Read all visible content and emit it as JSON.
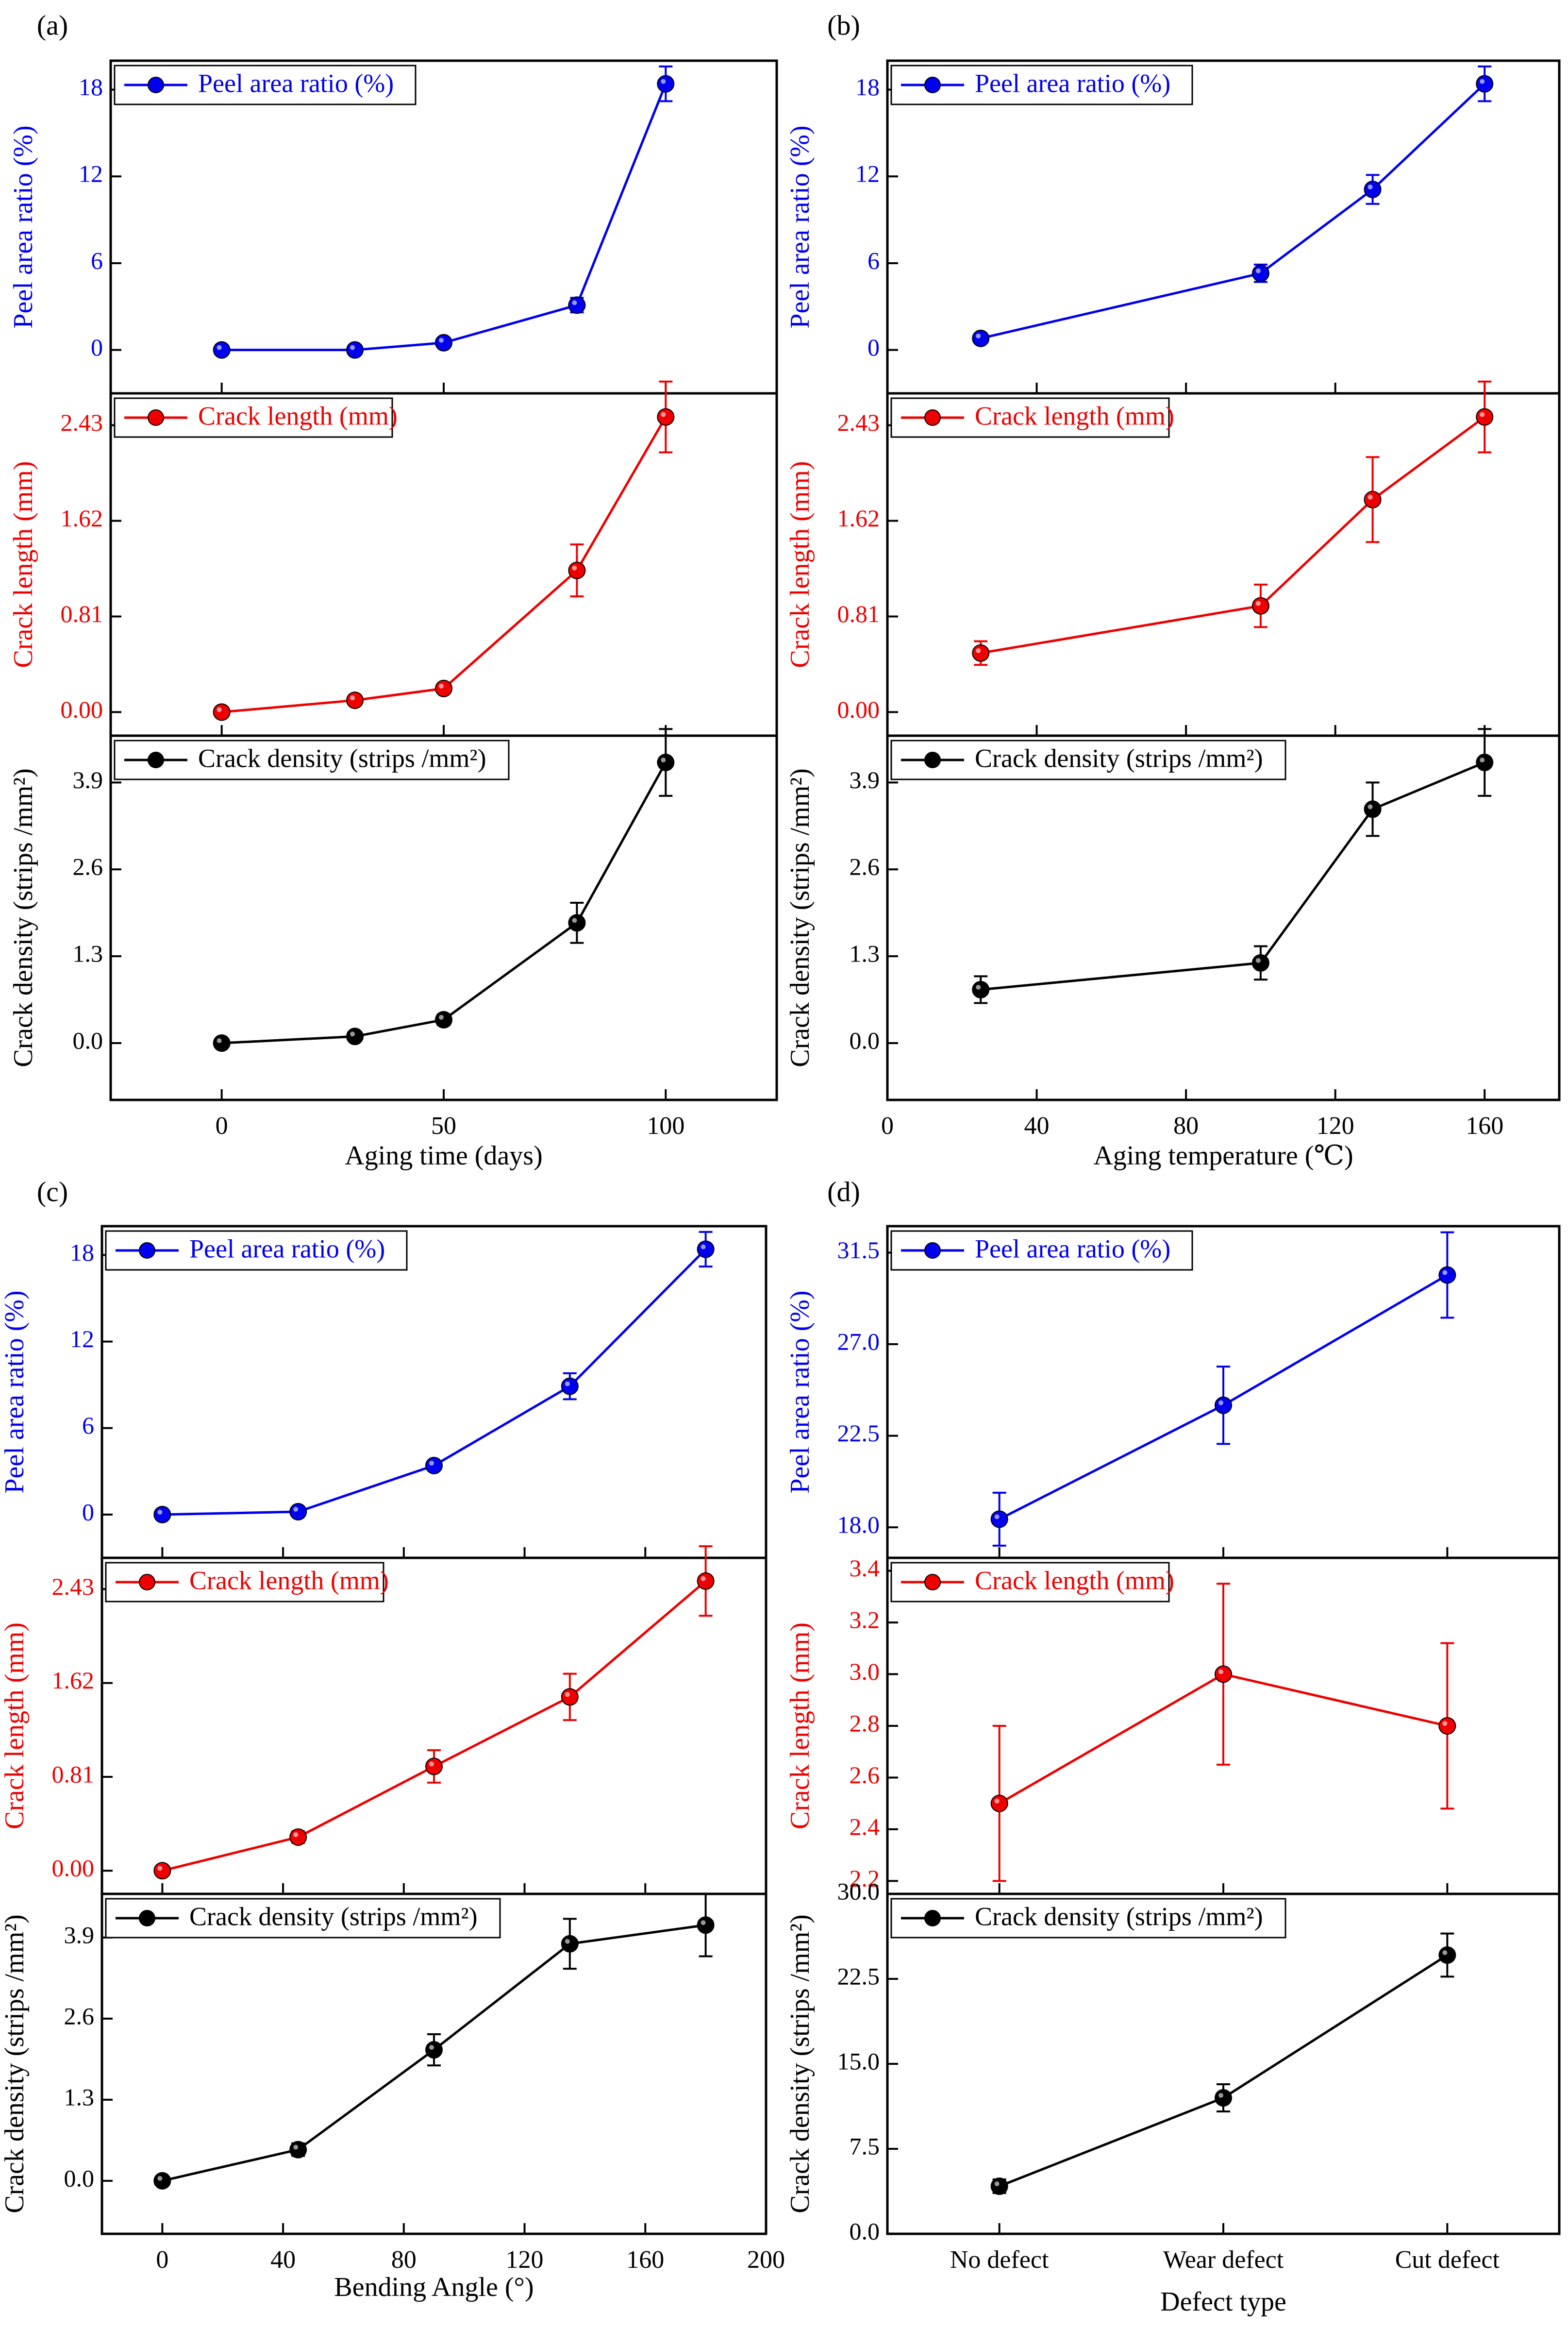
{
  "colors": {
    "blue": "#0000ee",
    "red": "#ee0000",
    "black": "#000000"
  },
  "chart_data": [
    {
      "panel_label": "(a)",
      "type": "line",
      "xlabel": "Aging time (days)",
      "xlim": [
        -25,
        125
      ],
      "xticks": [
        0,
        50,
        100
      ],
      "x": [
        0,
        30,
        50,
        80,
        100
      ],
      "series": [
        {
          "name": "Peel area ratio (%)",
          "ylabel": "Peel area ratio (%)",
          "color": "blue",
          "ylim": [
            -3,
            20
          ],
          "yticks": [
            "0",
            "6",
            "12",
            "18"
          ],
          "values": [
            0,
            0,
            0.5,
            3.1,
            18.4
          ],
          "errors": [
            0.2,
            0.2,
            0.3,
            0.5,
            1.2
          ]
        },
        {
          "name": "Crack length (mm)",
          "ylabel": "Crack length (mm)",
          "color": "red",
          "ylim": [
            -0.2,
            2.7
          ],
          "yticks": [
            "0.00",
            "0.81",
            "1.62",
            "2.43"
          ],
          "values": [
            0,
            0.1,
            0.2,
            1.2,
            2.5
          ],
          "errors": [
            0.03,
            0.04,
            0.04,
            0.22,
            0.3
          ]
        },
        {
          "name": "Crack density (strips /mm²)",
          "ylabel": "Crack density (strips /mm²)",
          "color": "black",
          "ylim": [
            -0.85,
            4.6
          ],
          "yticks": [
            "0.0",
            "1.3",
            "2.6",
            "3.9"
          ],
          "values": [
            0,
            0.1,
            0.35,
            1.8,
            4.2
          ],
          "errors": [
            0.05,
            0.06,
            0.08,
            0.3,
            0.5
          ]
        }
      ]
    },
    {
      "panel_label": "(b)",
      "type": "line",
      "xlabel": "Aging temperature (℃)",
      "xlim": [
        0,
        180
      ],
      "xticks": [
        0,
        40,
        80,
        120,
        160
      ],
      "x": [
        25,
        100,
        130,
        160
      ],
      "series": [
        {
          "name": "Peel area ratio (%)",
          "ylabel": "Peel area ratio (%)",
          "color": "blue",
          "ylim": [
            -3,
            20
          ],
          "yticks": [
            "0",
            "6",
            "12",
            "18"
          ],
          "values": [
            0.8,
            5.3,
            11.1,
            18.4
          ],
          "errors": [
            0.2,
            0.6,
            1.0,
            1.2
          ]
        },
        {
          "name": "Crack length (mm)",
          "ylabel": "Crack length (mm)",
          "color": "red",
          "ylim": [
            -0.2,
            2.7
          ],
          "yticks": [
            "0.00",
            "0.81",
            "1.62",
            "2.43"
          ],
          "values": [
            0.5,
            0.9,
            1.8,
            2.5
          ],
          "errors": [
            0.1,
            0.18,
            0.36,
            0.3
          ]
        },
        {
          "name": "Crack density (strips /mm²)",
          "ylabel": "Crack density (strips /mm²)",
          "color": "black",
          "ylim": [
            -0.85,
            4.6
          ],
          "yticks": [
            "0.0",
            "1.3",
            "2.6",
            "3.9"
          ],
          "values": [
            0.8,
            1.2,
            3.5,
            4.2
          ],
          "errors": [
            0.2,
            0.25,
            0.4,
            0.5
          ]
        }
      ]
    },
    {
      "panel_label": "(c)",
      "type": "line",
      "xlabel": "Bending Angle (°)",
      "xlim": [
        -20,
        200
      ],
      "xticks": [
        0,
        40,
        80,
        120,
        160,
        200
      ],
      "x": [
        0,
        45,
        90,
        135,
        180
      ],
      "series": [
        {
          "name": "Peel area ratio (%)",
          "ylabel": "Peel area ratio (%)",
          "color": "blue",
          "ylim": [
            -3,
            20
          ],
          "yticks": [
            "0",
            "6",
            "12",
            "18"
          ],
          "values": [
            0,
            0.2,
            3.4,
            8.9,
            18.4
          ],
          "errors": [
            0.1,
            0.1,
            0.3,
            0.9,
            1.2
          ]
        },
        {
          "name": "Crack length (mm)",
          "ylabel": "Crack length (mm)",
          "color": "red",
          "ylim": [
            -0.2,
            2.7
          ],
          "yticks": [
            "0.00",
            "0.81",
            "1.62",
            "2.43"
          ],
          "values": [
            0,
            0.29,
            0.9,
            1.5,
            2.5
          ],
          "errors": [
            0.03,
            0.05,
            0.14,
            0.2,
            0.3
          ]
        },
        {
          "name": "Crack density (strips /mm²)",
          "ylabel": "Crack density (strips /mm²)",
          "color": "black",
          "ylim": [
            -0.85,
            4.6
          ],
          "yticks": [
            "0.0",
            "1.3",
            "2.6",
            "3.9"
          ],
          "values": [
            0,
            0.5,
            2.1,
            3.8,
            4.1
          ],
          "errors": [
            0.05,
            0.1,
            0.25,
            0.4,
            0.5
          ]
        }
      ]
    },
    {
      "panel_label": "(d)",
      "type": "line",
      "xlabel": "Defect type",
      "categorical": true,
      "xlim": [
        -0.5,
        2.5
      ],
      "xticks": [
        0,
        1,
        2
      ],
      "categories": [
        "No defect",
        "Wear defect",
        "Cut defect"
      ],
      "x": [
        0,
        1,
        2
      ],
      "series": [
        {
          "name": "Peel area ratio (%)",
          "ylabel": "Peel area ratio (%)",
          "color": "blue",
          "ylim": [
            16.5,
            32.8
          ],
          "yticks": [
            "18.0",
            "22.5",
            "27.0",
            "31.5"
          ],
          "values": [
            18.4,
            24.0,
            30.4
          ],
          "errors": [
            1.3,
            1.9,
            2.1
          ]
        },
        {
          "name": "Crack length (mm)",
          "ylabel": "Crack length (mm)",
          "color": "red",
          "ylim": [
            2.15,
            3.45
          ],
          "yticks": [
            "2.2",
            "2.4",
            "2.6",
            "2.8",
            "3.0",
            "3.2",
            "3.4"
          ],
          "values": [
            2.5,
            3.0,
            2.8
          ],
          "errors": [
            0.3,
            0.35,
            0.32
          ]
        },
        {
          "name": "Crack density (strips /mm²)",
          "ylabel": "Crack density (strips /mm²)",
          "color": "black",
          "ylim": [
            0,
            30
          ],
          "yticks": [
            "0.0",
            "7.5",
            "15.0",
            "22.5",
            "30.0"
          ],
          "values": [
            4.2,
            12.0,
            24.6
          ],
          "errors": [
            0.6,
            1.2,
            1.9
          ]
        }
      ]
    }
  ]
}
